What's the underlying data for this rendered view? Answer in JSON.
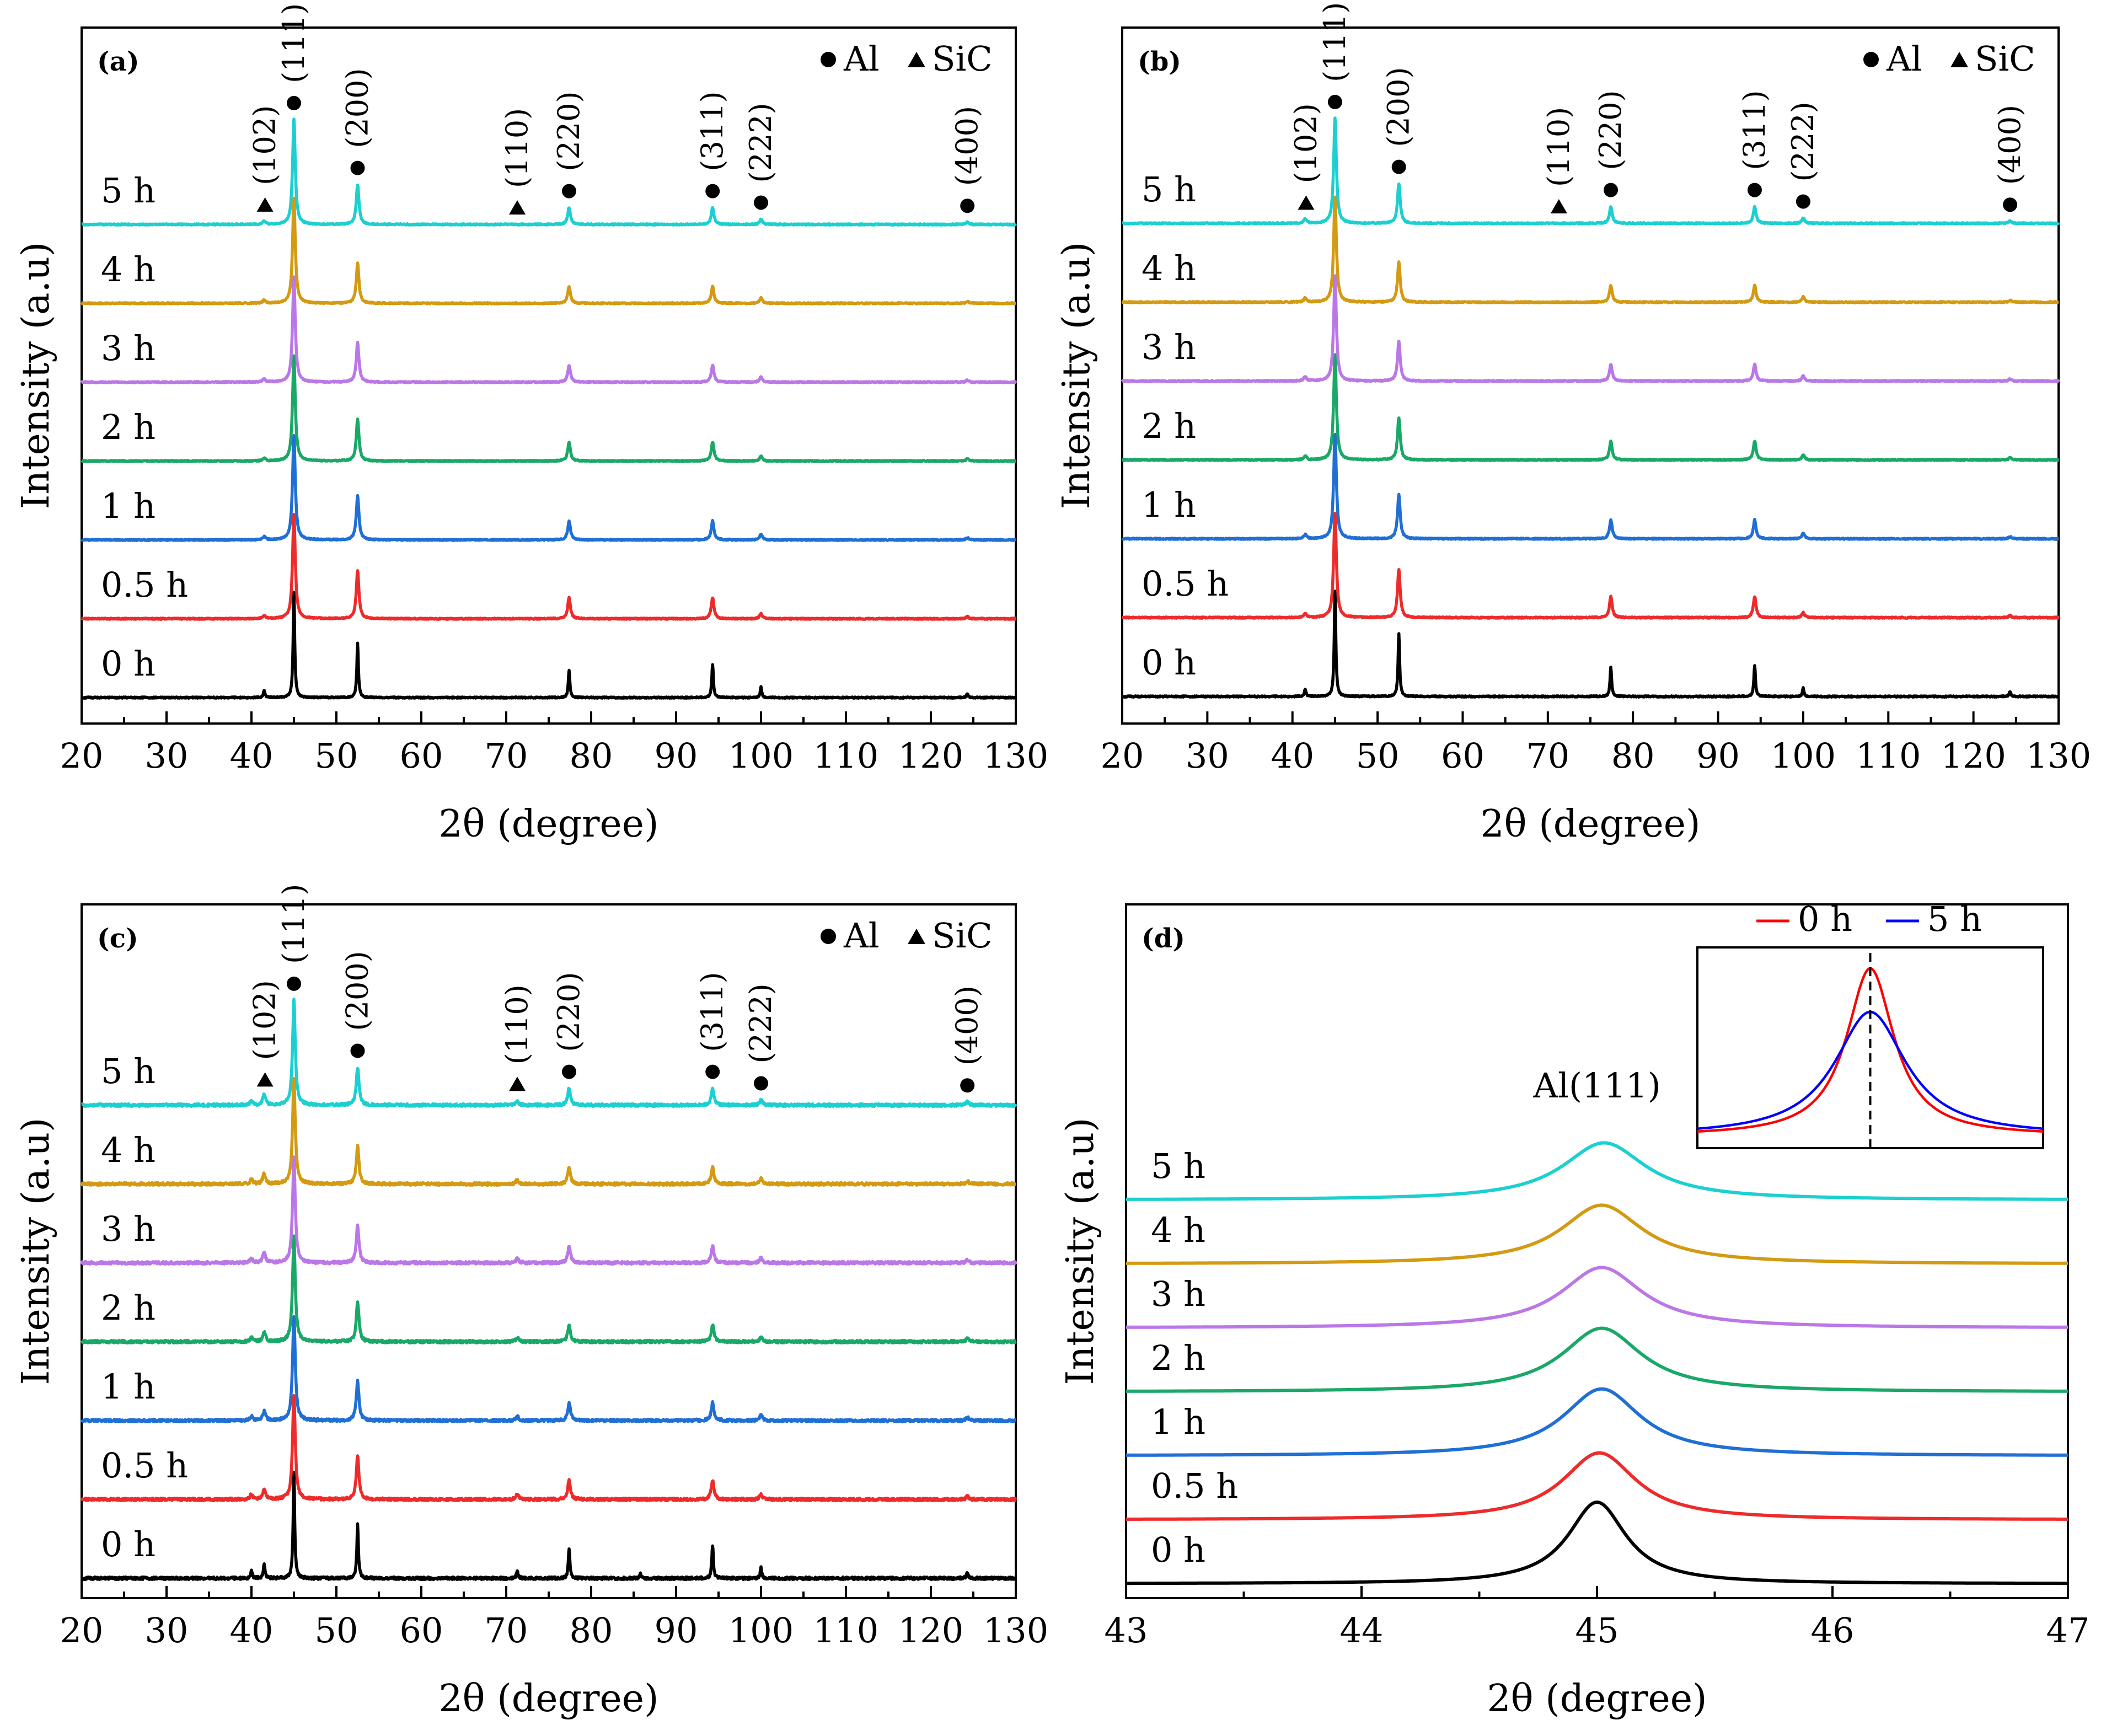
{
  "figure": {
    "colors": {
      "0 h": "#000000",
      "0.5 h": "#ee2b2b",
      "1 h": "#1f6fd4",
      "2 h": "#1aa868",
      "3 h": "#bb77e6",
      "4 h": "#d39a12",
      "5 h": "#1ccfd0"
    },
    "inset_colors": {
      "0 h": "#ff0000",
      "5 h": "#0000ff"
    }
  },
  "chart_data": [
    {
      "panel": "(a)",
      "type": "line",
      "xlabel": "2θ (degree)",
      "ylabel": "Intensity (a.u)",
      "xlim": [
        20,
        130
      ],
      "xticks": [
        20,
        30,
        40,
        50,
        60,
        70,
        80,
        90,
        100,
        110,
        120,
        130
      ],
      "series": [
        {
          "name": "0 h",
          "offset": 0,
          "peaks": [
            [
              41.5,
              7
            ],
            [
              45.0,
              100
            ],
            [
              52.5,
              52
            ],
            [
              77.4,
              26
            ],
            [
              94.3,
              32
            ],
            [
              100.0,
              10
            ],
            [
              124.3,
              4
            ]
          ]
        },
        {
          "name": "0.5 h",
          "offset": 1,
          "peaks": [
            [
              41.5,
              3
            ],
            [
              45.0,
              100
            ],
            [
              52.5,
              46
            ],
            [
              77.4,
              20
            ],
            [
              94.3,
              20
            ],
            [
              100.0,
              5
            ],
            [
              124.3,
              2
            ]
          ]
        },
        {
          "name": "1 h",
          "offset": 2,
          "peaks": [
            [
              41.5,
              3
            ],
            [
              45.0,
              100
            ],
            [
              52.5,
              42
            ],
            [
              77.4,
              18
            ],
            [
              94.3,
              18
            ],
            [
              100.0,
              5
            ],
            [
              124.3,
              2
            ]
          ]
        },
        {
          "name": "2 h",
          "offset": 3,
          "peaks": [
            [
              41.5,
              3
            ],
            [
              45.0,
              100
            ],
            [
              52.5,
              40
            ],
            [
              77.4,
              18
            ],
            [
              94.3,
              18
            ],
            [
              100.0,
              5
            ],
            [
              124.3,
              2
            ]
          ]
        },
        {
          "name": "3 h",
          "offset": 4,
          "peaks": [
            [
              41.5,
              3
            ],
            [
              45.0,
              100
            ],
            [
              52.5,
              38
            ],
            [
              77.4,
              16
            ],
            [
              94.3,
              16
            ],
            [
              100.0,
              5
            ],
            [
              124.3,
              2
            ]
          ]
        },
        {
          "name": "4 h",
          "offset": 5,
          "peaks": [
            [
              41.5,
              3
            ],
            [
              45.0,
              100
            ],
            [
              52.5,
              38
            ],
            [
              77.4,
              16
            ],
            [
              94.3,
              16
            ],
            [
              100.0,
              5
            ],
            [
              124.3,
              2
            ]
          ]
        },
        {
          "name": "5 h",
          "offset": 6,
          "peaks": [
            [
              41.5,
              3
            ],
            [
              45.0,
              100
            ],
            [
              52.5,
              38
            ],
            [
              77.4,
              16
            ],
            [
              94.3,
              16
            ],
            [
              100.0,
              5
            ],
            [
              124.3,
              2
            ]
          ]
        }
      ],
      "annotations": [
        {
          "label": "(102)",
          "x": 41.6,
          "phase": "SiC"
        },
        {
          "label": "(111)",
          "x": 45.0,
          "phase": "Al"
        },
        {
          "label": "(200)",
          "x": 52.5,
          "phase": "Al"
        },
        {
          "label": "(110)",
          "x": 71.3,
          "phase": "SiC"
        },
        {
          "label": "(220)",
          "x": 77.4,
          "phase": "Al"
        },
        {
          "label": "(311)",
          "x": 94.3,
          "phase": "Al"
        },
        {
          "label": "(222)",
          "x": 100.0,
          "phase": "Al"
        },
        {
          "label": "(400)",
          "x": 124.3,
          "phase": "Al"
        }
      ],
      "legend": [
        {
          "symbol": "●",
          "label": "Al"
        },
        {
          "symbol": "▲",
          "label": "SiC"
        }
      ]
    },
    {
      "panel": "(b)",
      "type": "line",
      "xlabel": "2θ (degree)",
      "ylabel": "Intensity (a.u)",
      "xlim": [
        20,
        130
      ],
      "xticks": [
        20,
        30,
        40,
        50,
        60,
        70,
        80,
        90,
        100,
        110,
        120,
        130
      ],
      "series": [
        {
          "name": "0 h",
          "offset": 0,
          "peaks": [
            [
              41.5,
              7
            ],
            [
              45.0,
              100
            ],
            [
              52.5,
              60
            ],
            [
              77.4,
              28
            ],
            [
              94.3,
              30
            ],
            [
              100.0,
              8
            ],
            [
              124.3,
              5
            ]
          ]
        },
        {
          "name": "0.5 h",
          "offset": 1,
          "peaks": [
            [
              41.5,
              4
            ],
            [
              45.0,
              100
            ],
            [
              52.5,
              46
            ],
            [
              77.4,
              20
            ],
            [
              94.3,
              20
            ],
            [
              100.0,
              5
            ],
            [
              124.3,
              2
            ]
          ]
        },
        {
          "name": "1 h",
          "offset": 2,
          "peaks": [
            [
              41.5,
              4
            ],
            [
              45.0,
              100
            ],
            [
              52.5,
              42
            ],
            [
              77.4,
              18
            ],
            [
              94.3,
              18
            ],
            [
              100.0,
              5
            ],
            [
              124.3,
              2
            ]
          ]
        },
        {
          "name": "2 h",
          "offset": 3,
          "peaks": [
            [
              41.5,
              4
            ],
            [
              45.0,
              100
            ],
            [
              52.5,
              40
            ],
            [
              77.4,
              18
            ],
            [
              94.3,
              18
            ],
            [
              100.0,
              5
            ],
            [
              124.3,
              2
            ]
          ]
        },
        {
          "name": "3 h",
          "offset": 4,
          "peaks": [
            [
              41.5,
              4
            ],
            [
              45.0,
              100
            ],
            [
              52.5,
              38
            ],
            [
              77.4,
              16
            ],
            [
              94.3,
              16
            ],
            [
              100.0,
              5
            ],
            [
              124.3,
              2
            ]
          ]
        },
        {
          "name": "4 h",
          "offset": 5,
          "peaks": [
            [
              41.5,
              4
            ],
            [
              45.0,
              100
            ],
            [
              52.5,
              38
            ],
            [
              77.4,
              16
            ],
            [
              94.3,
              16
            ],
            [
              100.0,
              5
            ],
            [
              124.3,
              2
            ]
          ]
        },
        {
          "name": "5 h",
          "offset": 6,
          "peaks": [
            [
              41.5,
              4
            ],
            [
              45.0,
              100
            ],
            [
              52.5,
              38
            ],
            [
              77.4,
              16
            ],
            [
              94.3,
              16
            ],
            [
              100.0,
              5
            ],
            [
              124.3,
              2
            ]
          ]
        }
      ],
      "annotations": [
        {
          "label": "(102)",
          "x": 41.6,
          "phase": "SiC"
        },
        {
          "label": "(111)",
          "x": 45.0,
          "phase": "Al"
        },
        {
          "label": "(200)",
          "x": 52.5,
          "phase": "Al"
        },
        {
          "label": "(110)",
          "x": 71.3,
          "phase": "SiC"
        },
        {
          "label": "(220)",
          "x": 77.4,
          "phase": "Al"
        },
        {
          "label": "(311)",
          "x": 94.3,
          "phase": "Al"
        },
        {
          "label": "(222)",
          "x": 100.0,
          "phase": "Al"
        },
        {
          "label": "(400)",
          "x": 124.3,
          "phase": "Al"
        }
      ],
      "legend": [
        {
          "symbol": "●",
          "label": "Al"
        },
        {
          "symbol": "▲",
          "label": "SiC"
        }
      ]
    },
    {
      "panel": "(c)",
      "type": "line",
      "xlabel": "2θ (degree)",
      "ylabel": "Intensity (a.u)",
      "xlim": [
        20,
        130
      ],
      "xticks": [
        20,
        30,
        40,
        50,
        60,
        70,
        80,
        90,
        100,
        110,
        120,
        130
      ],
      "series": [
        {
          "name": "0 h",
          "offset": 0,
          "peaks": [
            [
              40.0,
              8
            ],
            [
              41.5,
              14
            ],
            [
              45.0,
              100
            ],
            [
              52.5,
              52
            ],
            [
              71.3,
              7
            ],
            [
              77.4,
              28
            ],
            [
              85.8,
              5
            ],
            [
              94.3,
              32
            ],
            [
              100.0,
              10
            ],
            [
              124.3,
              6
            ]
          ]
        },
        {
          "name": "0.5 h",
          "offset": 1,
          "peaks": [
            [
              40.0,
              5
            ],
            [
              41.5,
              10
            ],
            [
              45.0,
              100
            ],
            [
              52.5,
              42
            ],
            [
              71.3,
              5
            ],
            [
              77.4,
              18
            ],
            [
              94.3,
              18
            ],
            [
              100.0,
              5
            ],
            [
              124.3,
              3
            ]
          ]
        },
        {
          "name": "1 h",
          "offset": 2,
          "peaks": [
            [
              40.0,
              4
            ],
            [
              41.5,
              9
            ],
            [
              45.0,
              100
            ],
            [
              52.5,
              38
            ],
            [
              71.3,
              4
            ],
            [
              77.4,
              17
            ],
            [
              94.3,
              17
            ],
            [
              100.0,
              5
            ],
            [
              124.3,
              3
            ]
          ]
        },
        {
          "name": "2 h",
          "offset": 3,
          "peaks": [
            [
              40.0,
              4
            ],
            [
              41.5,
              10
            ],
            [
              45.0,
              100
            ],
            [
              52.5,
              38
            ],
            [
              71.3,
              4
            ],
            [
              77.4,
              16
            ],
            [
              94.3,
              16
            ],
            [
              100.0,
              5
            ],
            [
              124.3,
              3
            ]
          ]
        },
        {
          "name": "3 h",
          "offset": 4,
          "peaks": [
            [
              40.0,
              4
            ],
            [
              41.5,
              10
            ],
            [
              45.0,
              100
            ],
            [
              52.5,
              36
            ],
            [
              71.3,
              4
            ],
            [
              77.4,
              16
            ],
            [
              94.3,
              16
            ],
            [
              100.0,
              5
            ],
            [
              124.3,
              3
            ]
          ]
        },
        {
          "name": "4 h",
          "offset": 5,
          "peaks": [
            [
              40.0,
              4
            ],
            [
              41.5,
              10
            ],
            [
              45.0,
              100
            ],
            [
              52.5,
              36
            ],
            [
              71.3,
              4
            ],
            [
              77.4,
              16
            ],
            [
              94.3,
              16
            ],
            [
              100.0,
              5
            ],
            [
              124.3,
              3
            ]
          ]
        },
        {
          "name": "5 h",
          "offset": 6,
          "peaks": [
            [
              40.0,
              4
            ],
            [
              41.5,
              10
            ],
            [
              45.0,
              100
            ],
            [
              52.5,
              36
            ],
            [
              71.3,
              4
            ],
            [
              77.4,
              16
            ],
            [
              94.3,
              16
            ],
            [
              100.0,
              5
            ],
            [
              124.3,
              3
            ]
          ]
        }
      ],
      "annotations": [
        {
          "label": "(102)",
          "x": 41.6,
          "phase": "SiC"
        },
        {
          "label": "(111)",
          "x": 45.0,
          "phase": "Al"
        },
        {
          "label": "(200)",
          "x": 52.5,
          "phase": "Al"
        },
        {
          "label": "(110)",
          "x": 71.3,
          "phase": "SiC"
        },
        {
          "label": "(220)",
          "x": 77.4,
          "phase": "Al"
        },
        {
          "label": "(311)",
          "x": 94.3,
          "phase": "Al"
        },
        {
          "label": "(222)",
          "x": 100.0,
          "phase": "Al"
        },
        {
          "label": "(400)",
          "x": 124.3,
          "phase": "Al"
        }
      ],
      "legend": [
        {
          "symbol": "●",
          "label": "Al"
        },
        {
          "symbol": "▲",
          "label": "SiC"
        }
      ]
    },
    {
      "panel": "(d)",
      "type": "line",
      "xlabel": "2θ (degree)",
      "ylabel": "Intensity (a.u)",
      "xlim": [
        43,
        47
      ],
      "xticks": [
        43,
        44,
        45,
        46,
        47
      ],
      "peak_label": "Al(111)",
      "series": [
        {
          "name": "0 h",
          "offset": 0,
          "center": 45.0,
          "fwhm": 0.3,
          "height": 100
        },
        {
          "name": "0.5 h",
          "offset": 1,
          "center": 45.01,
          "fwhm": 0.38,
          "height": 82
        },
        {
          "name": "1 h",
          "offset": 2,
          "center": 45.02,
          "fwhm": 0.4,
          "height": 82
        },
        {
          "name": "2 h",
          "offset": 3,
          "center": 45.02,
          "fwhm": 0.41,
          "height": 78
        },
        {
          "name": "3 h",
          "offset": 4,
          "center": 45.02,
          "fwhm": 0.42,
          "height": 74
        },
        {
          "name": "4 h",
          "offset": 5,
          "center": 45.02,
          "fwhm": 0.42,
          "height": 72
        },
        {
          "name": "5 h",
          "offset": 6,
          "center": 45.03,
          "fwhm": 0.43,
          "height": 70
        }
      ],
      "inset": {
        "legend": [
          "0 h",
          "5 h"
        ],
        "series": [
          {
            "name": "0 h",
            "center": 45.0,
            "fwhm": 0.3,
            "height": 100
          },
          {
            "name": "5 h",
            "center": 45.0,
            "fwhm": 0.45,
            "height": 74
          }
        ],
        "reference_line": "dashed vertical line at peak center"
      }
    }
  ]
}
